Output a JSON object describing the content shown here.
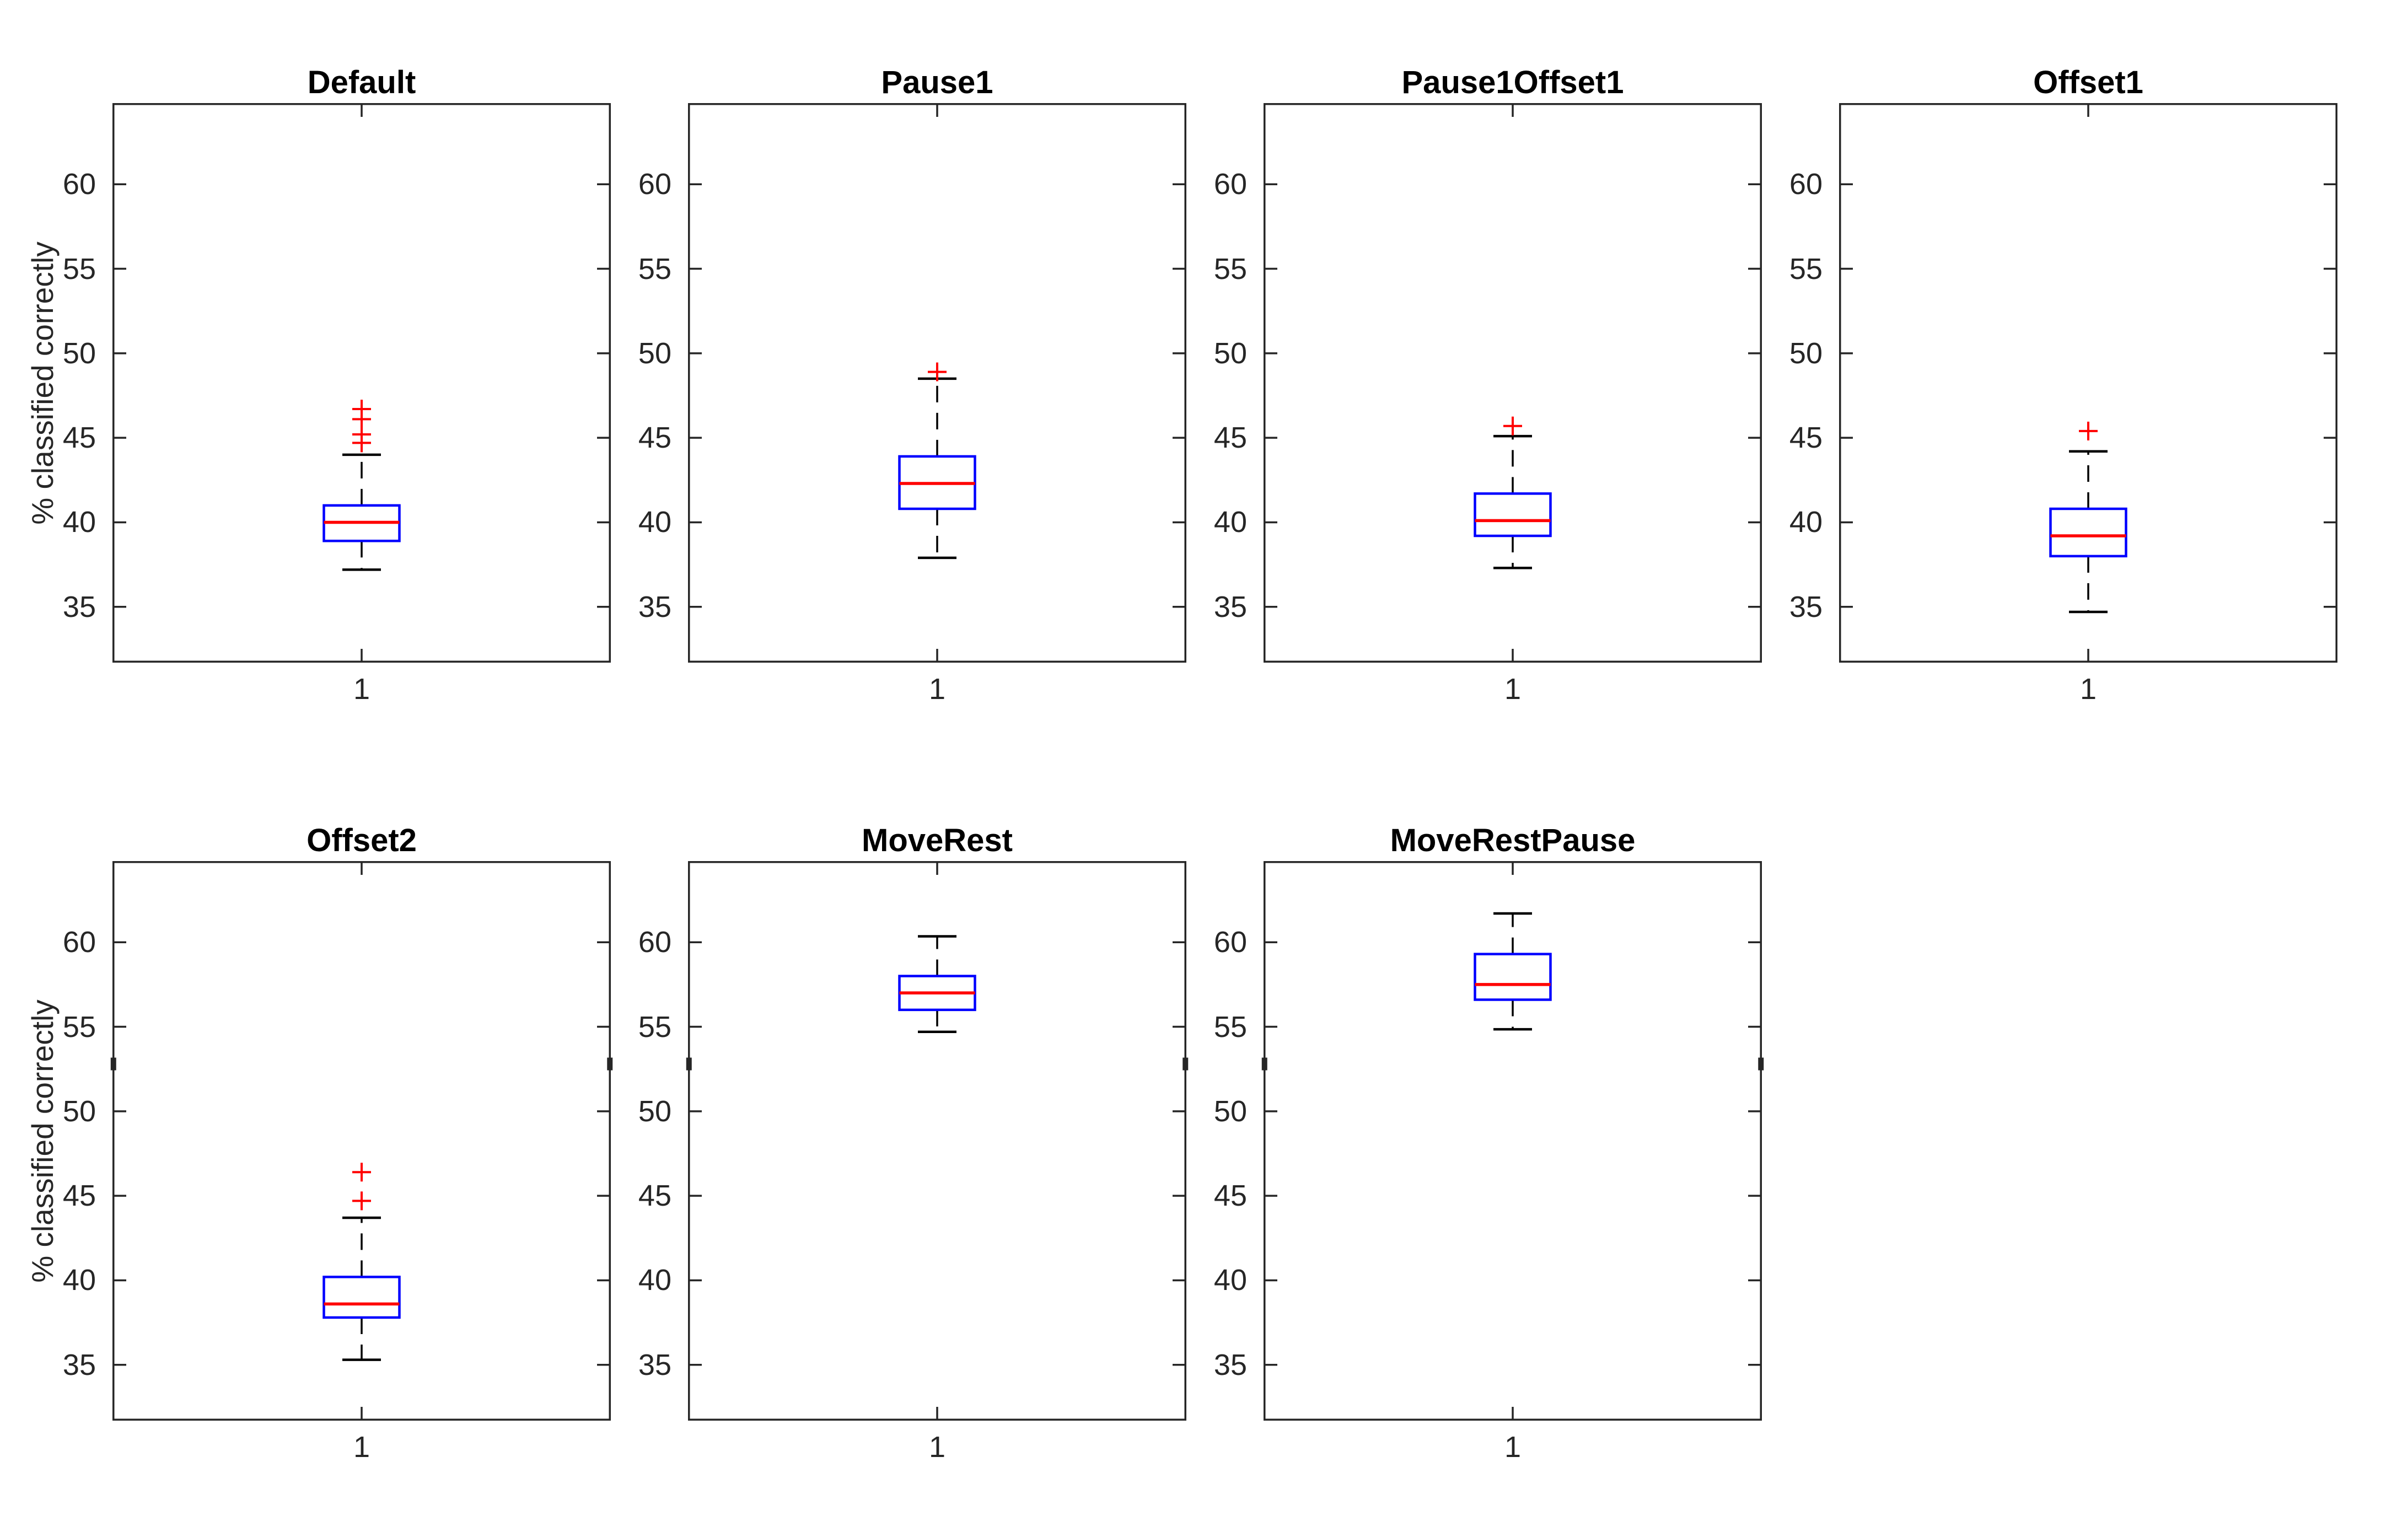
{
  "figure": {
    "background": "#FFFFFF"
  },
  "style": {
    "box_color": "#0000FF",
    "median_color": "#FF0000",
    "whisker_color": "#000000",
    "outlier_color": "#FF0000",
    "axis_color": "#262626",
    "title_color": "#000000"
  },
  "axes": {
    "ylabel": "% classified correctly",
    "yticks": [
      35,
      40,
      45,
      50,
      55,
      60
    ],
    "ytick_labels": [
      "35",
      "40",
      "45",
      "50",
      "55",
      "60"
    ],
    "xtick_label": "1",
    "ylim": [
      31.7,
      64.8
    ],
    "xlim": [
      0.5,
      1.5
    ],
    "grid": false
  },
  "chart_data": [
    {
      "type": "box",
      "title": "Default",
      "row": 0,
      "col": 0,
      "has_ylabel": true,
      "x": 1,
      "whisker_low": 37.2,
      "q1": 38.9,
      "median": 40.0,
      "q3": 41.0,
      "whisker_high": 44.0,
      "outliers": [
        44.7,
        45.2,
        46.1,
        46.7
      ],
      "spine_marks": []
    },
    {
      "type": "box",
      "title": "Pause1",
      "row": 0,
      "col": 1,
      "has_ylabel": false,
      "x": 1,
      "whisker_low": 37.9,
      "q1": 40.8,
      "median": 42.3,
      "q3": 43.9,
      "whisker_high": 48.5,
      "outliers": [
        48.9
      ],
      "spine_marks": []
    },
    {
      "type": "box",
      "title": "Pause1Offset1",
      "row": 0,
      "col": 2,
      "has_ylabel": false,
      "x": 1,
      "whisker_low": 37.3,
      "q1": 39.2,
      "median": 40.1,
      "q3": 41.7,
      "whisker_high": 45.1,
      "outliers": [
        45.7
      ],
      "spine_marks": []
    },
    {
      "type": "box",
      "title": "Offset1",
      "row": 0,
      "col": 3,
      "has_ylabel": false,
      "x": 1,
      "whisker_low": 34.7,
      "q1": 38.0,
      "median": 39.2,
      "q3": 40.8,
      "whisker_high": 44.2,
      "outliers": [
        45.4
      ],
      "spine_marks": []
    },
    {
      "type": "box",
      "title": "Offset2",
      "row": 1,
      "col": 0,
      "has_ylabel": true,
      "x": 1,
      "whisker_low": 35.3,
      "q1": 37.8,
      "median": 38.6,
      "q3": 40.2,
      "whisker_high": 43.7,
      "outliers": [
        44.7,
        46.4
      ],
      "spine_marks": [
        52.8
      ]
    },
    {
      "type": "box",
      "title": "MoveRest",
      "row": 1,
      "col": 1,
      "has_ylabel": false,
      "x": 1,
      "whisker_low": 54.7,
      "q1": 56.0,
      "median": 57.0,
      "q3": 58.0,
      "whisker_high": 60.35,
      "outliers": [],
      "spine_marks": [
        52.8
      ]
    },
    {
      "type": "box",
      "title": "MoveRestPause",
      "row": 1,
      "col": 2,
      "has_ylabel": false,
      "x": 1,
      "whisker_low": 54.85,
      "q1": 56.6,
      "median": 57.5,
      "q3": 59.3,
      "whisker_high": 61.7,
      "outliers": [],
      "spine_marks": [
        52.8
      ]
    }
  ]
}
